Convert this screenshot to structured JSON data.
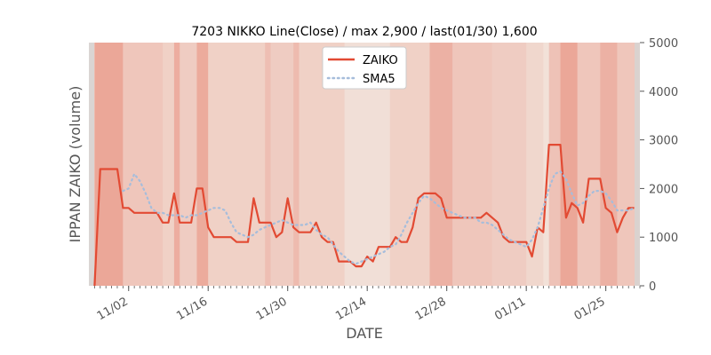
{
  "chart_data": {
    "type": "line",
    "title": "7203 NIKKO Line(Close) / max 2,900 / last(01/30) 1,600",
    "xlabel": "DATE",
    "ylabel": "IPPAN ZAIKO (volume)",
    "ylim": [
      0,
      5000
    ],
    "yticks": [
      0,
      1000,
      2000,
      3000,
      4000,
      5000
    ],
    "ytick_labels": [
      "0",
      "1000",
      "2000",
      "3000",
      "4000",
      "5000"
    ],
    "xlim_days": [
      "10/26",
      "01/31"
    ],
    "xticks": [
      {
        "date": "11/02",
        "label": "11/02"
      },
      {
        "date": "11/16",
        "label": "11/16"
      },
      {
        "date": "11/30",
        "label": "11/30"
      },
      {
        "date": "12/14",
        "label": "12/14"
      },
      {
        "date": "12/28",
        "label": "12/28"
      },
      {
        "date": "01/11",
        "label": "01/11"
      },
      {
        "date": "01/25",
        "label": "01/25"
      }
    ],
    "legend_position": "top-center",
    "grid": false,
    "series": [
      {
        "name": "ZAIKO",
        "color": "#e24a33",
        "style": "solid",
        "x": [
          "10/27",
          "10/28",
          "10/29",
          "10/30",
          "10/31",
          "11/01",
          "11/02",
          "11/03",
          "11/04",
          "11/05",
          "11/06",
          "11/07",
          "11/08",
          "11/09",
          "11/10",
          "11/11",
          "11/12",
          "11/13",
          "11/14",
          "11/15",
          "11/16",
          "11/17",
          "11/18",
          "11/19",
          "11/20",
          "11/21",
          "11/22",
          "11/23",
          "11/24",
          "11/25",
          "11/26",
          "11/27",
          "11/28",
          "11/29",
          "11/30",
          "12/01",
          "12/02",
          "12/03",
          "12/04",
          "12/05",
          "12/06",
          "12/07",
          "12/08",
          "12/09",
          "12/10",
          "12/11",
          "12/12",
          "12/13",
          "12/14",
          "12/15",
          "12/16",
          "12/17",
          "12/18",
          "12/19",
          "12/20",
          "12/21",
          "12/22",
          "12/23",
          "12/24",
          "12/25",
          "12/26",
          "12/27",
          "12/28",
          "12/29",
          "12/30",
          "12/31",
          "01/01",
          "01/02",
          "01/03",
          "01/04",
          "01/05",
          "01/06",
          "01/07",
          "01/08",
          "01/09",
          "01/10",
          "01/11",
          "01/12",
          "01/13",
          "01/14",
          "01/15",
          "01/16",
          "01/17",
          "01/18",
          "01/19",
          "01/20",
          "01/21",
          "01/22",
          "01/23",
          "01/24",
          "01/25",
          "01/26",
          "01/27",
          "01/28",
          "01/29",
          "01/30"
        ],
        "values": [
          0,
          2400,
          2400,
          2400,
          2400,
          1600,
          1600,
          1500,
          1500,
          1500,
          1500,
          1500,
          1300,
          1300,
          1900,
          1300,
          1300,
          1300,
          2000,
          2000,
          1200,
          1000,
          1000,
          1000,
          1000,
          900,
          900,
          900,
          1800,
          1300,
          1300,
          1300,
          1000,
          1100,
          1800,
          1200,
          1100,
          1100,
          1100,
          1300,
          1000,
          900,
          900,
          500,
          500,
          500,
          400,
          400,
          600,
          500,
          800,
          800,
          800,
          1000,
          900,
          900,
          1200,
          1800,
          1900,
          1900,
          1900,
          1800,
          1400,
          1400,
          1400,
          1400,
          1400,
          1400,
          1400,
          1500,
          1400,
          1300,
          1000,
          900,
          900,
          900,
          900,
          600,
          1200,
          1100,
          2900,
          2900,
          2900,
          1400,
          1700,
          1600,
          1300,
          2200,
          2200,
          2200,
          1600,
          1500,
          1100,
          1400,
          1600,
          1600
        ]
      },
      {
        "name": "SMA5",
        "color": "#a6bddb",
        "style": "dotted",
        "x": [
          "11/01",
          "11/02",
          "11/03",
          "11/04",
          "11/05",
          "11/06",
          "11/07",
          "11/08",
          "11/09",
          "11/10",
          "11/11",
          "11/12",
          "11/13",
          "11/14",
          "11/15",
          "11/16",
          "11/17",
          "11/18",
          "11/19",
          "11/20",
          "11/21",
          "11/22",
          "11/23",
          "11/24",
          "11/25",
          "11/26",
          "11/27",
          "11/28",
          "11/29",
          "11/30",
          "12/01",
          "12/02",
          "12/03",
          "12/04",
          "12/05",
          "12/06",
          "12/07",
          "12/08",
          "12/09",
          "12/10",
          "12/11",
          "12/12",
          "12/13",
          "12/14",
          "12/15",
          "12/16",
          "12/17",
          "12/18",
          "12/19",
          "12/20",
          "12/21",
          "12/22",
          "12/23",
          "12/24",
          "12/25",
          "12/26",
          "12/27",
          "12/28",
          "12/29",
          "12/30",
          "12/31",
          "01/01",
          "01/02",
          "01/03",
          "01/04",
          "01/05",
          "01/06",
          "01/07",
          "01/08",
          "01/09",
          "01/10",
          "01/11",
          "01/12",
          "01/13",
          "01/14",
          "01/15",
          "01/16",
          "01/17",
          "01/18",
          "01/19",
          "01/20",
          "01/21",
          "01/22",
          "01/23",
          "01/24",
          "01/25",
          "01/26",
          "01/27",
          "01/28",
          "01/29",
          "01/30"
        ],
        "values": [
          1950,
          2000,
          2300,
          2150,
          1900,
          1600,
          1500,
          1500,
          1450,
          1450,
          1450,
          1400,
          1450,
          1450,
          1500,
          1550,
          1600,
          1600,
          1550,
          1300,
          1100,
          1050,
          1000,
          1050,
          1150,
          1200,
          1250,
          1300,
          1350,
          1300,
          1250,
          1250,
          1250,
          1300,
          1150,
          1050,
          1000,
          850,
          700,
          600,
          500,
          450,
          500,
          550,
          600,
          650,
          700,
          800,
          850,
          1050,
          1300,
          1500,
          1700,
          1850,
          1800,
          1700,
          1600,
          1550,
          1500,
          1450,
          1400,
          1400,
          1400,
          1300,
          1300,
          1250,
          1150,
          1050,
          950,
          900,
          850,
          800,
          950,
          1200,
          1600,
          2000,
          2300,
          2350,
          2200,
          1900,
          1650,
          1700,
          1850,
          1950,
          1950,
          1900,
          1750,
          1550,
          1550,
          1550,
          1600
        ]
      }
    ],
    "background_bands": [
      {
        "from": "10/26",
        "to": "10/27",
        "intensity": 0.2
      },
      {
        "from": "10/27",
        "to": "11/01",
        "intensity": 0.9
      },
      {
        "from": "11/01",
        "to": "11/08",
        "intensity": 0.45
      },
      {
        "from": "11/08",
        "to": "11/10",
        "intensity": 0.3
      },
      {
        "from": "11/10",
        "to": "11/11",
        "intensity": 0.8
      },
      {
        "from": "11/11",
        "to": "11/14",
        "intensity": 0.35
      },
      {
        "from": "11/14",
        "to": "11/16",
        "intensity": 0.85
      },
      {
        "from": "11/16",
        "to": "11/26",
        "intensity": 0.3
      },
      {
        "from": "11/26",
        "to": "11/27",
        "intensity": 0.55
      },
      {
        "from": "11/27",
        "to": "12/01",
        "intensity": 0.35
      },
      {
        "from": "12/01",
        "to": "12/02",
        "intensity": 0.6
      },
      {
        "from": "12/02",
        "to": "12/10",
        "intensity": 0.3
      },
      {
        "from": "12/10",
        "to": "12/18",
        "intensity": 0.08
      },
      {
        "from": "12/18",
        "to": "12/25",
        "intensity": 0.3
      },
      {
        "from": "12/25",
        "to": "12/29",
        "intensity": 0.75
      },
      {
        "from": "12/29",
        "to": "01/05",
        "intensity": 0.45
      },
      {
        "from": "01/05",
        "to": "01/11",
        "intensity": 0.35
      },
      {
        "from": "01/11",
        "to": "01/14",
        "intensity": 0.2
      },
      {
        "from": "01/14",
        "to": "01/15",
        "intensity": 0.05
      },
      {
        "from": "01/15",
        "to": "01/17",
        "intensity": 0.5
      },
      {
        "from": "01/17",
        "to": "01/20",
        "intensity": 0.9
      },
      {
        "from": "01/20",
        "to": "01/24",
        "intensity": 0.45
      },
      {
        "from": "01/24",
        "to": "01/27",
        "intensity": 0.75
      },
      {
        "from": "01/27",
        "to": "01/31",
        "intensity": 0.45
      }
    ],
    "band_color": "#e24a33",
    "edge_color": "#cccccc"
  }
}
